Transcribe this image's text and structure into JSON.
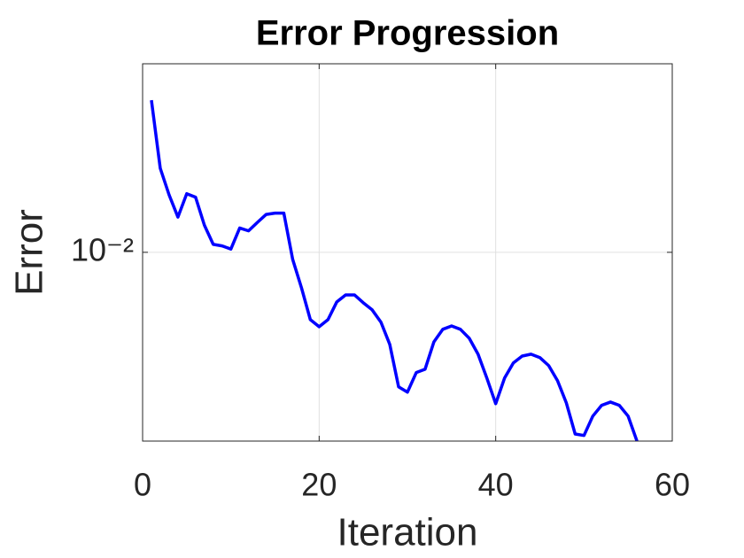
{
  "chart_data": {
    "type": "line",
    "title": "Error Progression",
    "x_label": "Iteration",
    "y_label": "Error",
    "log_y": true,
    "grid": true,
    "xlim": [
      0,
      60
    ],
    "xticks": [
      0,
      20,
      40,
      60
    ],
    "ylim": [
      0.00316,
      0.0316
    ],
    "yticks": [
      {
        "value": 0.01,
        "label": "10⁻²"
      }
    ],
    "series": [
      {
        "name": "Error",
        "color": "#0000ff",
        "x": [
          1,
          2,
          3,
          4,
          5,
          6,
          7,
          8,
          9,
          10,
          11,
          12,
          13,
          14,
          15,
          16,
          17,
          18,
          19,
          20,
          21,
          22,
          23,
          24,
          25,
          26,
          27,
          28,
          29,
          30,
          31,
          32,
          33,
          34,
          35,
          36,
          37,
          38,
          39,
          40,
          41,
          42,
          43,
          44,
          45,
          46,
          47,
          48,
          49,
          50,
          51,
          52,
          53,
          54,
          55,
          56
        ],
        "values": [
          0.0253,
          0.0167,
          0.0142,
          0.0124,
          0.0143,
          0.014,
          0.0118,
          0.0105,
          0.0104,
          0.0102,
          0.0116,
          0.0114,
          0.012,
          0.0126,
          0.0127,
          0.0127,
          0.00958,
          0.00805,
          0.00663,
          0.00635,
          0.00663,
          0.00739,
          0.00771,
          0.00771,
          0.00735,
          0.00704,
          0.00653,
          0.0057,
          0.0044,
          0.00426,
          0.0048,
          0.0049,
          0.00579,
          0.00625,
          0.00638,
          0.00625,
          0.00592,
          0.00537,
          0.00464,
          0.00397,
          0.00464,
          0.00509,
          0.00531,
          0.00537,
          0.00526,
          0.00501,
          0.00457,
          0.00399,
          0.0033,
          0.00327,
          0.00368,
          0.00393,
          0.00401,
          0.00393,
          0.00368,
          0.00316
        ]
      }
    ]
  }
}
